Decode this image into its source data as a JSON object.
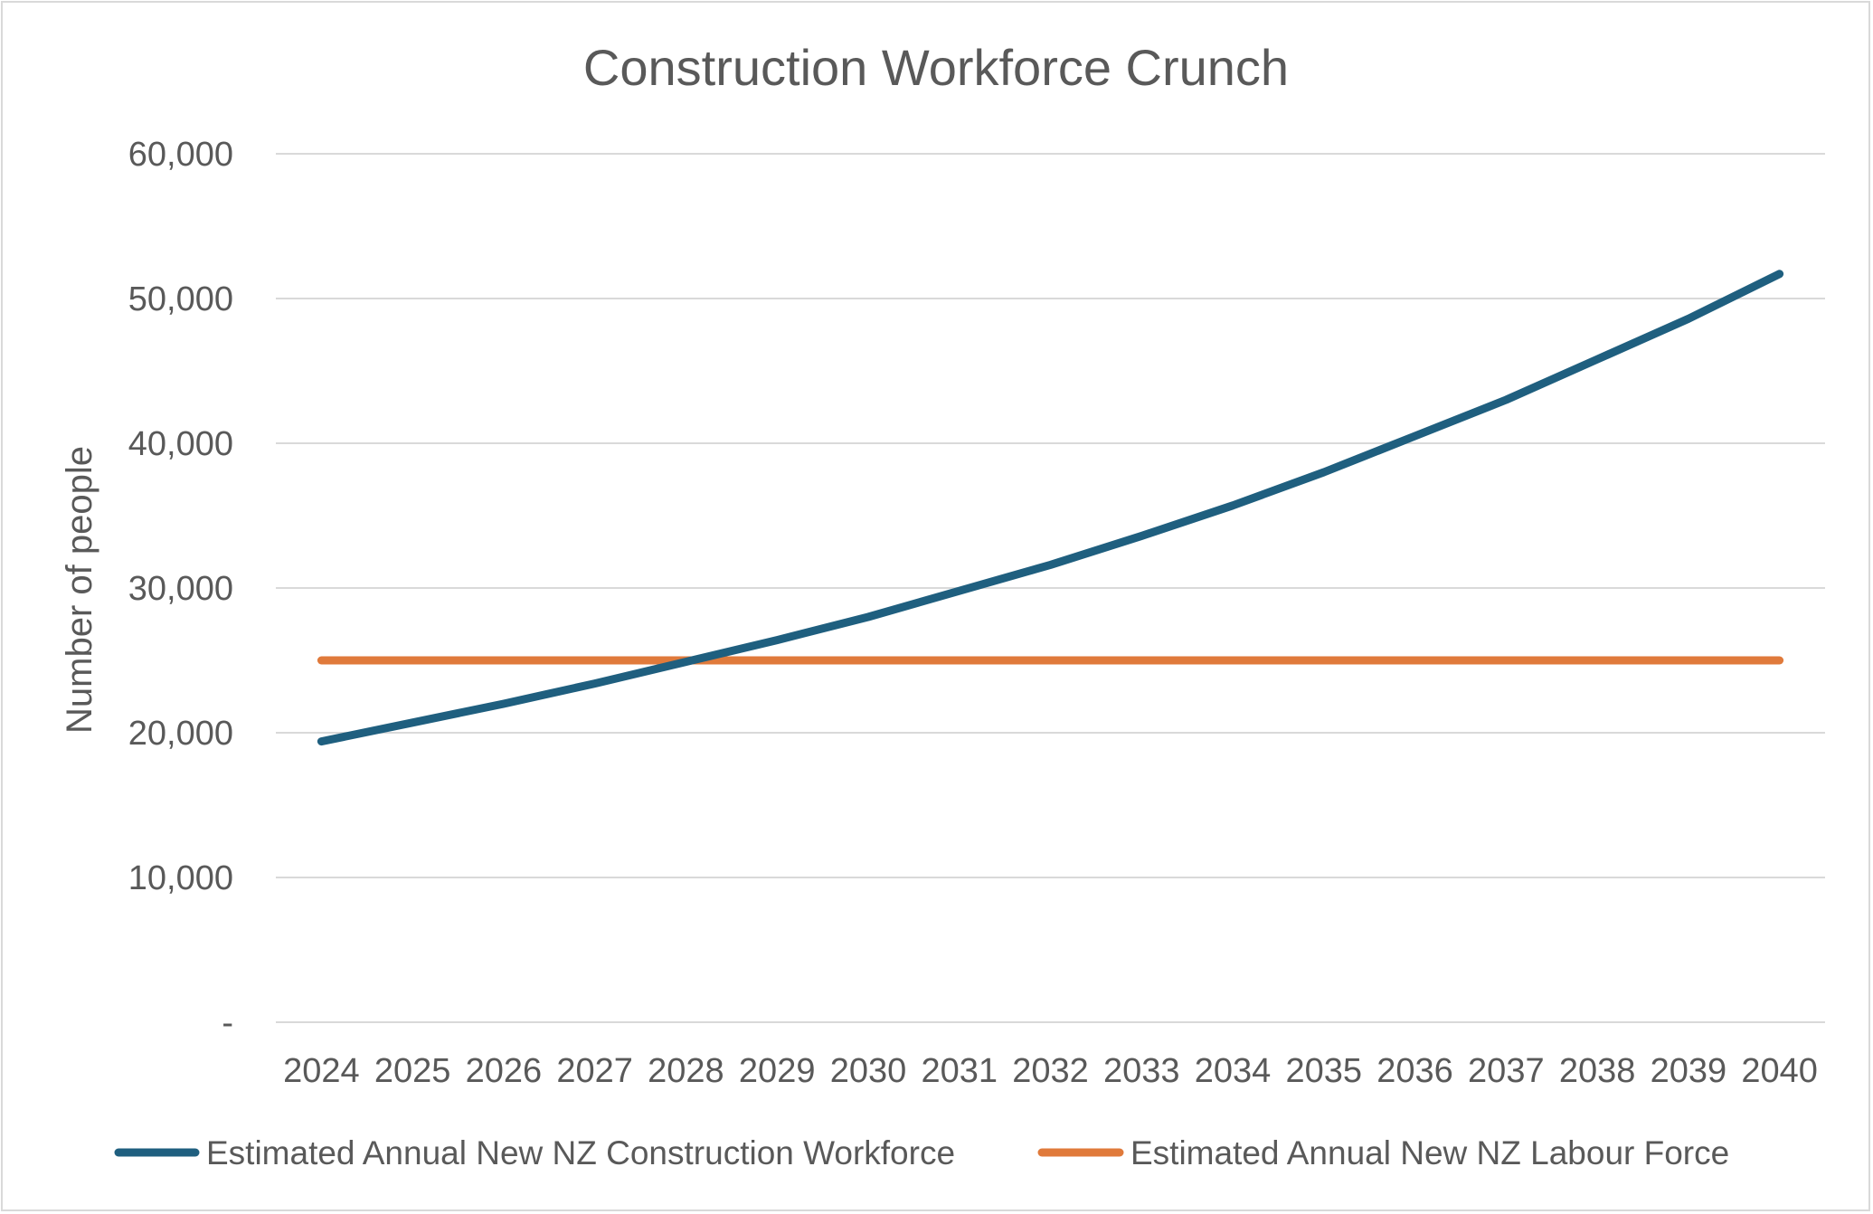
{
  "chart_data": {
    "type": "line",
    "title": "Construction Workforce Crunch",
    "xlabel": "",
    "ylabel": "Number of people",
    "ylim": [
      0,
      60000
    ],
    "yticks": [
      0,
      10000,
      20000,
      30000,
      40000,
      50000,
      60000
    ],
    "ytick_labels": [
      "-",
      "10,000",
      "20,000",
      "30,000",
      "40,000",
      "50,000",
      "60,000"
    ],
    "grid": true,
    "legend_position": "bottom",
    "x": [
      "2024",
      "2025",
      "2026",
      "2027",
      "2028",
      "2029",
      "2030",
      "2031",
      "2032",
      "2033",
      "2034",
      "2035",
      "2036",
      "2037",
      "2038",
      "2039",
      "2040"
    ],
    "series": [
      {
        "name": "Estimated Annual New NZ Construction Workforce",
        "color": "#1f5f7f",
        "values": [
          19400,
          20700,
          22000,
          23400,
          24900,
          26400,
          28000,
          29800,
          31600,
          33600,
          35700,
          38000,
          40500,
          43000,
          45800,
          48600,
          51700
        ]
      },
      {
        "name": "Estimated Annual New NZ Labour Force",
        "color": "#e07a3b",
        "values": [
          25000,
          25000,
          25000,
          25000,
          25000,
          25000,
          25000,
          25000,
          25000,
          25000,
          25000,
          25000,
          25000,
          25000,
          25000,
          25000,
          25000
        ]
      }
    ]
  }
}
